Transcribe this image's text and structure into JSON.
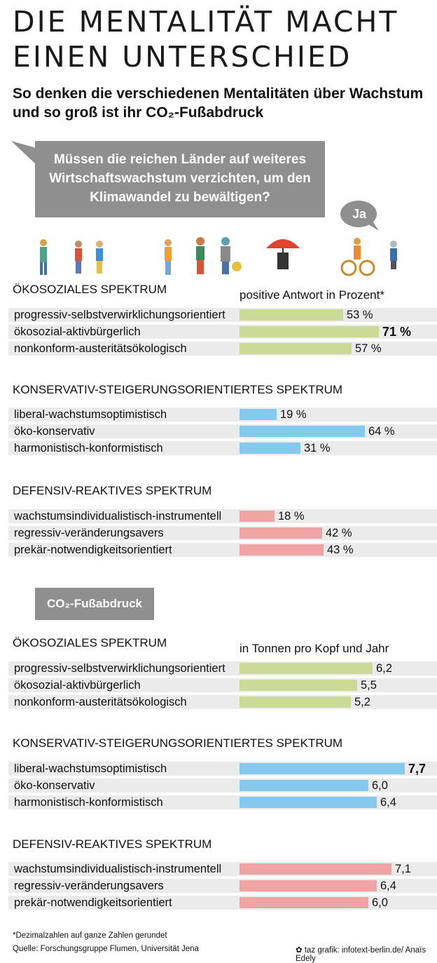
{
  "title": "DIE MENTALITÄT MACHT EINEN UNTERSCHIED",
  "subtitle": "So denken die verschiedenen Mentalitäten über Wachstum und so groß ist ihr CO₂-Fußabdruck",
  "question": "Müssen die reichen Länder auf weiteres Wirtschaftswachstum verzichten, um den Klimawandel zu bewältigen?",
  "ja_label": "Ja",
  "co2_label": "CO₂-Fußabdruck",
  "colors": {
    "oekosozial": "#cbdb96",
    "konservativ": "#86c9ee",
    "defensiv": "#f0a3a3",
    "bubble": "#8f8f8f",
    "row_bg": "#ebebeb"
  },
  "footnote": "*Dezimalzahlen auf ganze Zahlen gerundet",
  "source": "Quelle: Forschungsgruppe Flumen, Universität Jena",
  "credit": "taz grafik: infotext-berlin.de/ Anaïs Edely",
  "chart_data": [
    {
      "type": "bar",
      "title": "Müssen die reichen Länder auf weiteres Wirtschaftswachstum verzichten, um den Klimawandel zu bewältigen?",
      "unit_note": "positive Antwort in Prozent*",
      "value_suffix": " %",
      "xlim": [
        0,
        100
      ],
      "groups": [
        {
          "name": "ÖKOSOZIALES SPEKTRUM",
          "color_key": "oekosozial",
          "categories": [
            "progressiv-selbstverwirklichungsorientiert",
            "ökosozial-aktivbürgerlich",
            "nonkonform-austeritätsökologisch"
          ],
          "values": [
            53,
            71,
            57
          ],
          "labels": [
            "53 %",
            "71 %",
            "57 %"
          ],
          "highlight": [
            false,
            true,
            false
          ]
        },
        {
          "name": "KONSERVATIV-STEIGERUNGSORIENTIERTES SPEKTRUM",
          "color_key": "konservativ",
          "categories": [
            "liberal-wachstumsoptimistisch",
            "öko-konservativ",
            "harmonistisch-konformistisch"
          ],
          "values": [
            19,
            64,
            31
          ],
          "labels": [
            "19 %",
            "64 %",
            "31 %"
          ],
          "highlight": [
            false,
            false,
            false
          ]
        },
        {
          "name": "DEFENSIV-REAKTIVES SPEKTRUM",
          "color_key": "defensiv",
          "categories": [
            "wachstumsindividualistisch-instrumentell",
            "regressiv-veränderungsavers",
            "prekär-notwendigkeitsorientiert"
          ],
          "values": [
            18,
            42,
            43
          ],
          "labels": [
            "18 %",
            "42 %",
            "43 %"
          ],
          "highlight": [
            false,
            false,
            false
          ]
        }
      ]
    },
    {
      "type": "bar",
      "title": "CO₂-Fußabdruck",
      "unit_note": "in Tonnen pro Kopf und Jahr",
      "value_suffix": "",
      "xlim": [
        0,
        8
      ],
      "groups": [
        {
          "name": "ÖKOSOZIALES SPEKTRUM",
          "color_key": "oekosozial",
          "categories": [
            "progressiv-selbstverwirklichungsorientiert",
            "ökosozial-aktivbürgerlich",
            "nonkonform-austeritätsökologisch"
          ],
          "values": [
            6.2,
            5.5,
            5.2
          ],
          "labels": [
            "6,2",
            "5,5",
            "5,2"
          ],
          "highlight": [
            false,
            false,
            false
          ]
        },
        {
          "name": "KONSERVATIV-STEIGERUNGSORIENTIERTES SPEKTRUM",
          "color_key": "konservativ",
          "categories": [
            "liberal-wachstumsoptimistisch",
            "öko-konservativ",
            "harmonistisch-konformistisch"
          ],
          "values": [
            7.7,
            6.0,
            6.4
          ],
          "labels": [
            "7,7",
            "6,0",
            "6,4"
          ],
          "highlight": [
            true,
            false,
            false
          ]
        },
        {
          "name": "DEFENSIV-REAKTIVES SPEKTRUM",
          "color_key": "defensiv",
          "categories": [
            "wachstumsindividualistisch-instrumentell",
            "regressiv-veränderungsavers",
            "prekär-notwendigkeitsorientiert"
          ],
          "values": [
            7.1,
            6.4,
            6.0
          ],
          "labels": [
            "7,1",
            "6,4",
            "6,0"
          ],
          "highlight": [
            false,
            false,
            false
          ]
        }
      ]
    }
  ]
}
